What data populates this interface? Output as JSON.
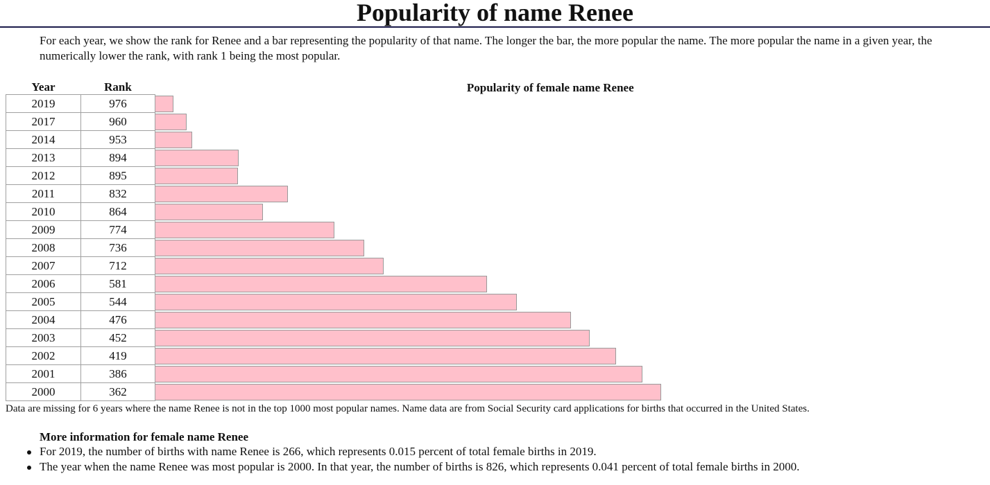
{
  "page": {
    "title": "Popularity of name Renee",
    "intro": "For each year, we show the rank for Renee and a bar representing the popularity of that name. The longer the bar, the more popular the name. The more popular the name in a given year, the numerically lower the rank, with rank 1 being the most popular.",
    "footnote": "Data are missing for 6 years where the name Renee is not in the top 1000 most popular names. Name data are from Social Security card applications for births that occurred in the United States.",
    "more_title": "More information for female name Renee",
    "more_items": [
      "For 2019, the number of births with name Renee is 266, which represents 0.015 percent of total female births in 2019.",
      "The year when the name Renee was most popular is 2000. In that year, the number of births is 826, which represents 0.041 percent of total female births in 2000."
    ]
  },
  "colors": {
    "bar_fill": "#ffc0cb",
    "bar_border": "#9a9a9a"
  },
  "chart_data": {
    "type": "bar",
    "title": "Popularity of female name Renee",
    "columns": [
      "Year",
      "Rank"
    ],
    "categories": [
      "2019",
      "2017",
      "2014",
      "2013",
      "2012",
      "2011",
      "2010",
      "2009",
      "2008",
      "2007",
      "2006",
      "2005",
      "2004",
      "2003",
      "2002",
      "2001",
      "2000"
    ],
    "values": [
      976,
      960,
      953,
      894,
      895,
      832,
      864,
      774,
      736,
      712,
      581,
      544,
      476,
      452,
      419,
      386,
      362
    ]
  }
}
